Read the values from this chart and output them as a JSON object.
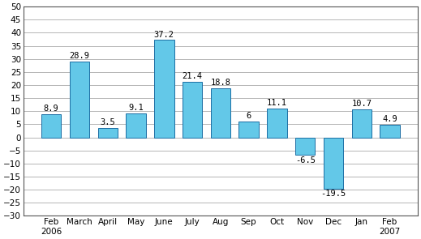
{
  "categories": [
    "Feb\n2006",
    "March",
    "April",
    "May",
    "June",
    "July",
    "Aug",
    "Sep",
    "Oct",
    "Nov",
    "Dec",
    "Jan",
    "Feb\n2007"
  ],
  "values": [
    8.9,
    28.9,
    3.5,
    9.1,
    37.2,
    21.4,
    18.8,
    6.0,
    11.1,
    -6.5,
    -19.5,
    10.7,
    4.9
  ],
  "bar_color": "#63C8E8",
  "bar_edge_color": "#1C6EA4",
  "background_color": "#ffffff",
  "ylim": [
    -30,
    50
  ],
  "yticks": [
    -30,
    -25,
    -20,
    -15,
    -10,
    -5,
    0,
    5,
    10,
    15,
    20,
    25,
    30,
    35,
    40,
    45,
    50
  ],
  "grid_color": "#aaaaaa",
  "label_fontsize": 7.5,
  "tick_fontsize": 7.5,
  "bar_width": 0.7
}
